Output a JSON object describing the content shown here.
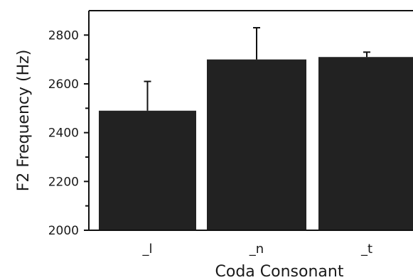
{
  "chart_data": {
    "type": "bar",
    "title": "",
    "xlabel": "Coda Consonant",
    "ylabel": "F2 Frequency (Hz)",
    "categories": [
      "_l",
      "_n",
      "_t"
    ],
    "values": [
      2490,
      2700,
      2710
    ],
    "error_upper": [
      2610,
      2830,
      2730
    ],
    "ylim": [
      2000,
      2900
    ],
    "yticks": [
      2000,
      2200,
      2400,
      2600,
      2800
    ],
    "yticks_labels": [
      "2000",
      "2200",
      "2400",
      "2600",
      "2800"
    ],
    "grid": false,
    "legend": "none",
    "colors": {
      "bar": "#222222",
      "axis": "#111111",
      "error_bar": "#111111"
    }
  }
}
